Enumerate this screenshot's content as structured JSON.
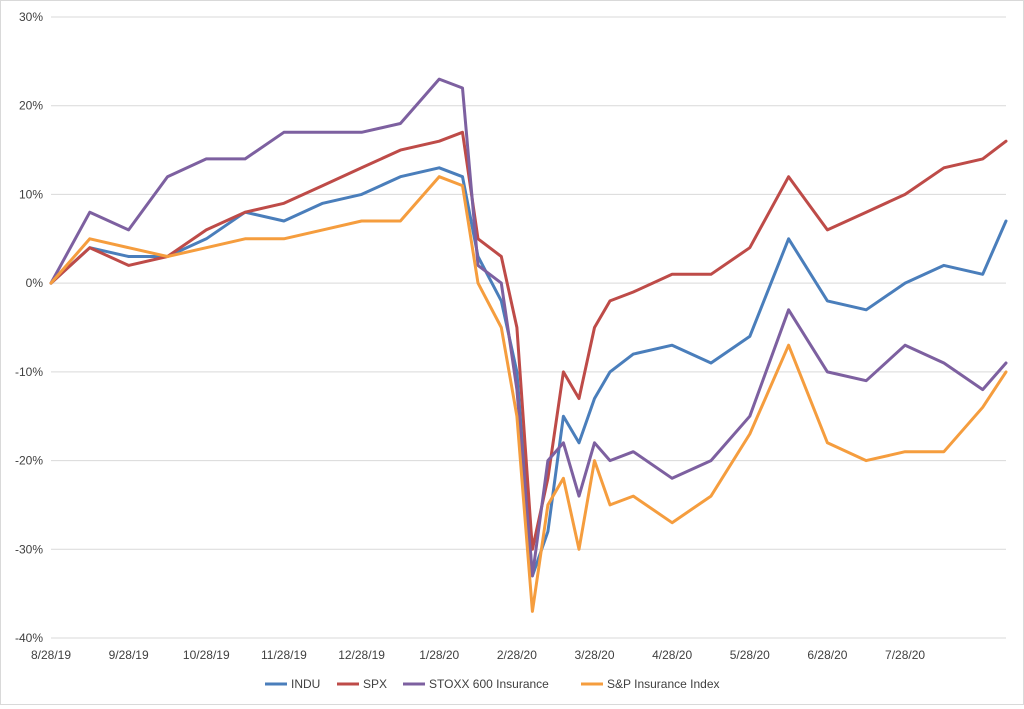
{
  "chart_data": {
    "type": "line",
    "title": "",
    "xlabel": "",
    "ylabel": "",
    "ylim": [
      -40,
      30
    ],
    "yticks": [
      30,
      20,
      10,
      0,
      -10,
      -20,
      -30,
      -40
    ],
    "ytick_labels": [
      "30%",
      "20%",
      "10%",
      "0%",
      "-10%",
      "-20%",
      "-30%",
      "-40%"
    ],
    "x_tick_labels": [
      "8/28/19",
      "9/28/19",
      "10/28/19",
      "11/28/19",
      "12/28/19",
      "1/28/20",
      "2/28/20",
      "3/28/20",
      "4/28/20",
      "5/28/20",
      "6/28/20",
      "7/28/20"
    ],
    "x_unit": "months since 8/28/19",
    "xlim": [
      0,
      12.3
    ],
    "grid": "horizontal",
    "legend_position": "bottom",
    "x": [
      0,
      0.5,
      1,
      1.5,
      2,
      2.5,
      3,
      3.5,
      4,
      4.5,
      5,
      5.3,
      5.5,
      5.8,
      6,
      6.2,
      6.4,
      6.6,
      6.8,
      7,
      7.2,
      7.5,
      8,
      8.5,
      9,
      9.5,
      10,
      10.5,
      11,
      11.5,
      12,
      12.3
    ],
    "series": [
      {
        "name": "INDU",
        "color": "#4a7ebb",
        "values": [
          0,
          4,
          3,
          3,
          5,
          8,
          7,
          9,
          10,
          12,
          13,
          12,
          3,
          -2,
          -10,
          -33,
          -28,
          -15,
          -18,
          -13,
          -10,
          -8,
          -7,
          -9,
          -6,
          5,
          -2,
          -3,
          0,
          2,
          1,
          7
        ]
      },
      {
        "name": "SPX",
        "color": "#be4b48",
        "values": [
          0,
          4,
          2,
          3,
          6,
          8,
          9,
          11,
          13,
          15,
          16,
          17,
          5,
          3,
          -5,
          -30,
          -22,
          -10,
          -13,
          -5,
          -2,
          -1,
          1,
          1,
          4,
          12,
          6,
          8,
          10,
          13,
          14,
          16
        ]
      },
      {
        "name": "STOXX 600 Insurance",
        "color": "#7d60a0",
        "values": [
          0,
          8,
          6,
          12,
          14,
          14,
          17,
          17,
          17,
          18,
          23,
          22,
          2,
          0,
          -12,
          -33,
          -20,
          -18,
          -24,
          -18,
          -20,
          -19,
          -22,
          -20,
          -15,
          -3,
          -10,
          -11,
          -7,
          -9,
          -12,
          -9
        ]
      },
      {
        "name": "S&P Insurance Index",
        "color": "#f59d3e",
        "values": [
          0,
          5,
          4,
          3,
          4,
          5,
          5,
          6,
          7,
          7,
          12,
          11,
          0,
          -5,
          -15,
          -37,
          -25,
          -22,
          -30,
          -20,
          -25,
          -24,
          -27,
          -24,
          -17,
          -7,
          -18,
          -20,
          -19,
          -19,
          -14,
          -10
        ]
      }
    ]
  }
}
